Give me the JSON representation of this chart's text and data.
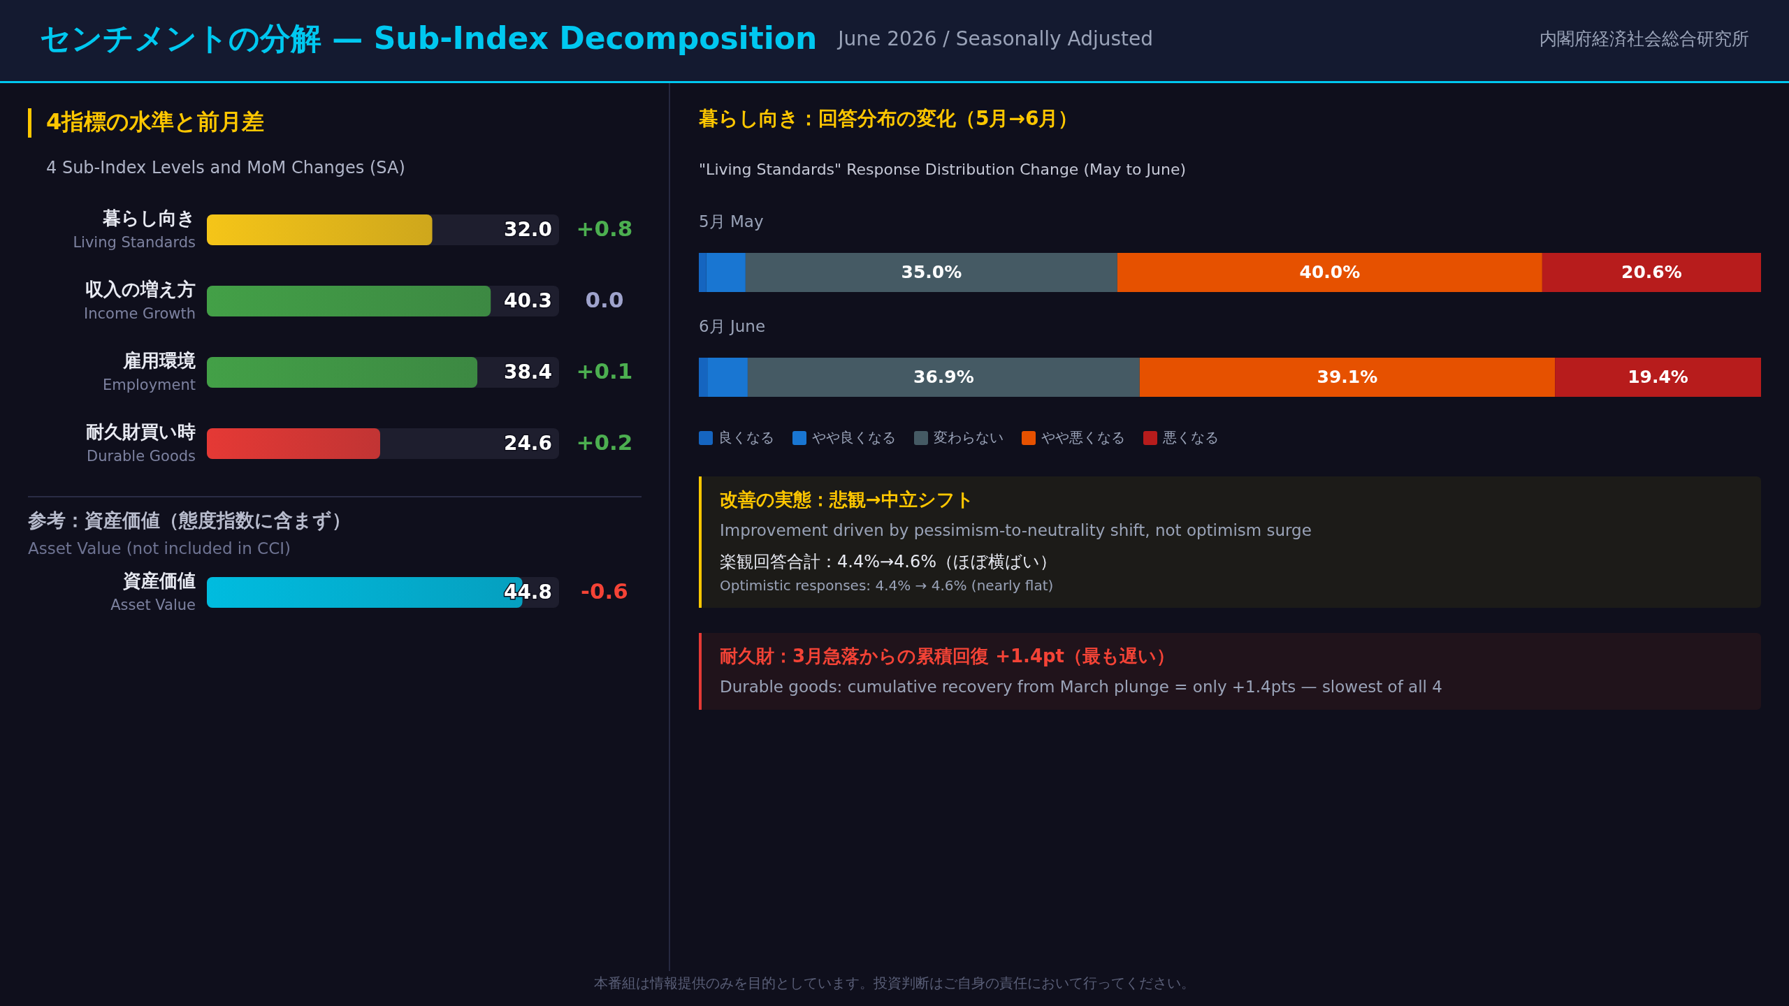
{
  "chart_data": [
    {
      "type": "other",
      "title": "センチメントの分解 — Sub-Index Decomposition",
      "subtitle": "June 2026 / Seasonally Adjusted",
      "annotations": [
        "内閣府経済社会総合研究所",
        "本番組は情報提供のみを目的としています。投資判断はご自身の責任において行ってください。"
      ]
    },
    {
      "type": "bar",
      "orientation": "horizontal",
      "title": "4指標の水準と前月差",
      "subtitle": "4 Sub-Index Levels and MoM Changes (SA)",
      "categories": [
        "暮らし向き\nLiving Standards",
        "収入の増え方\nIncome Growth",
        "雇用環境\nEmployment",
        "耐久財買い時\nDurable Goods",
        "資産価値\nAsset Value"
      ],
      "values": [
        32.0,
        40.3,
        38.4,
        24.6,
        44.8
      ],
      "colors": [
        "#f5c518",
        "#43a047",
        "#43a047",
        "#e53935",
        "#00bcdf"
      ],
      "value_labels": [
        "32.0",
        "40.3",
        "38.4",
        "24.6",
        "44.8"
      ],
      "xlim": [
        0,
        50
      ],
      "tick_labels": false,
      "annotations": [
        "+0.8",
        "0.0",
        "+0.1",
        "+0.2",
        "-0.6",
        "参考：資産価値（態度指数に含まず）",
        "Asset Value (not included in CCI)"
      ]
    },
    {
      "type": "bar",
      "orientation": "horizontal",
      "stacked": true,
      "title": "暮らし向き：回答分布の変化（5月→6月）",
      "subtitle": "\"Living Standards\" Response Distribution Change (May to June)",
      "categories": [
        "5月 May",
        "6月 June"
      ],
      "xlim": [
        0,
        100
      ],
      "tick_labels": false,
      "legend": "bottom",
      "series": [
        {
          "name": "良くなる",
          "color": "#1565c0",
          "values": [
            0.7,
            0.8
          ]
        },
        {
          "name": "やや良くなる",
          "color": "#1976d2",
          "values": [
            3.7,
            3.8
          ]
        },
        {
          "name": "変わらない",
          "color": "#455a64",
          "values": [
            35.0,
            36.9
          ],
          "value_labels": [
            "35.0%",
            "36.9%"
          ]
        },
        {
          "name": "やや悪くなる",
          "color": "#e65100",
          "values": [
            40.0,
            39.1
          ],
          "value_labels": [
            "40.0%",
            "39.1%"
          ]
        },
        {
          "name": "悪くなる",
          "color": "#b71c1c",
          "values": [
            20.6,
            19.4
          ],
          "value_labels": [
            "20.6%",
            "19.4%"
          ]
        }
      ]
    },
    {
      "type": "other",
      "title": "改善の実態：悲観→中立シフト",
      "annotations": [
        "Improvement driven by pessimism-to-neutrality shift, not optimism surge",
        "楽観回答合計：4.4%→4.6%（ほぼ横ばい）",
        "Optimistic responses: 4.4% → 4.6% (nearly flat)"
      ]
    },
    {
      "type": "other",
      "title": "耐久財：3月急落からの累積回復 +1.4pt（最も遅い）",
      "annotations": [
        "Durable goods: cumulative recovery from March plunge = only +1.4pts — slowest of all 4"
      ]
    }
  ]
}
